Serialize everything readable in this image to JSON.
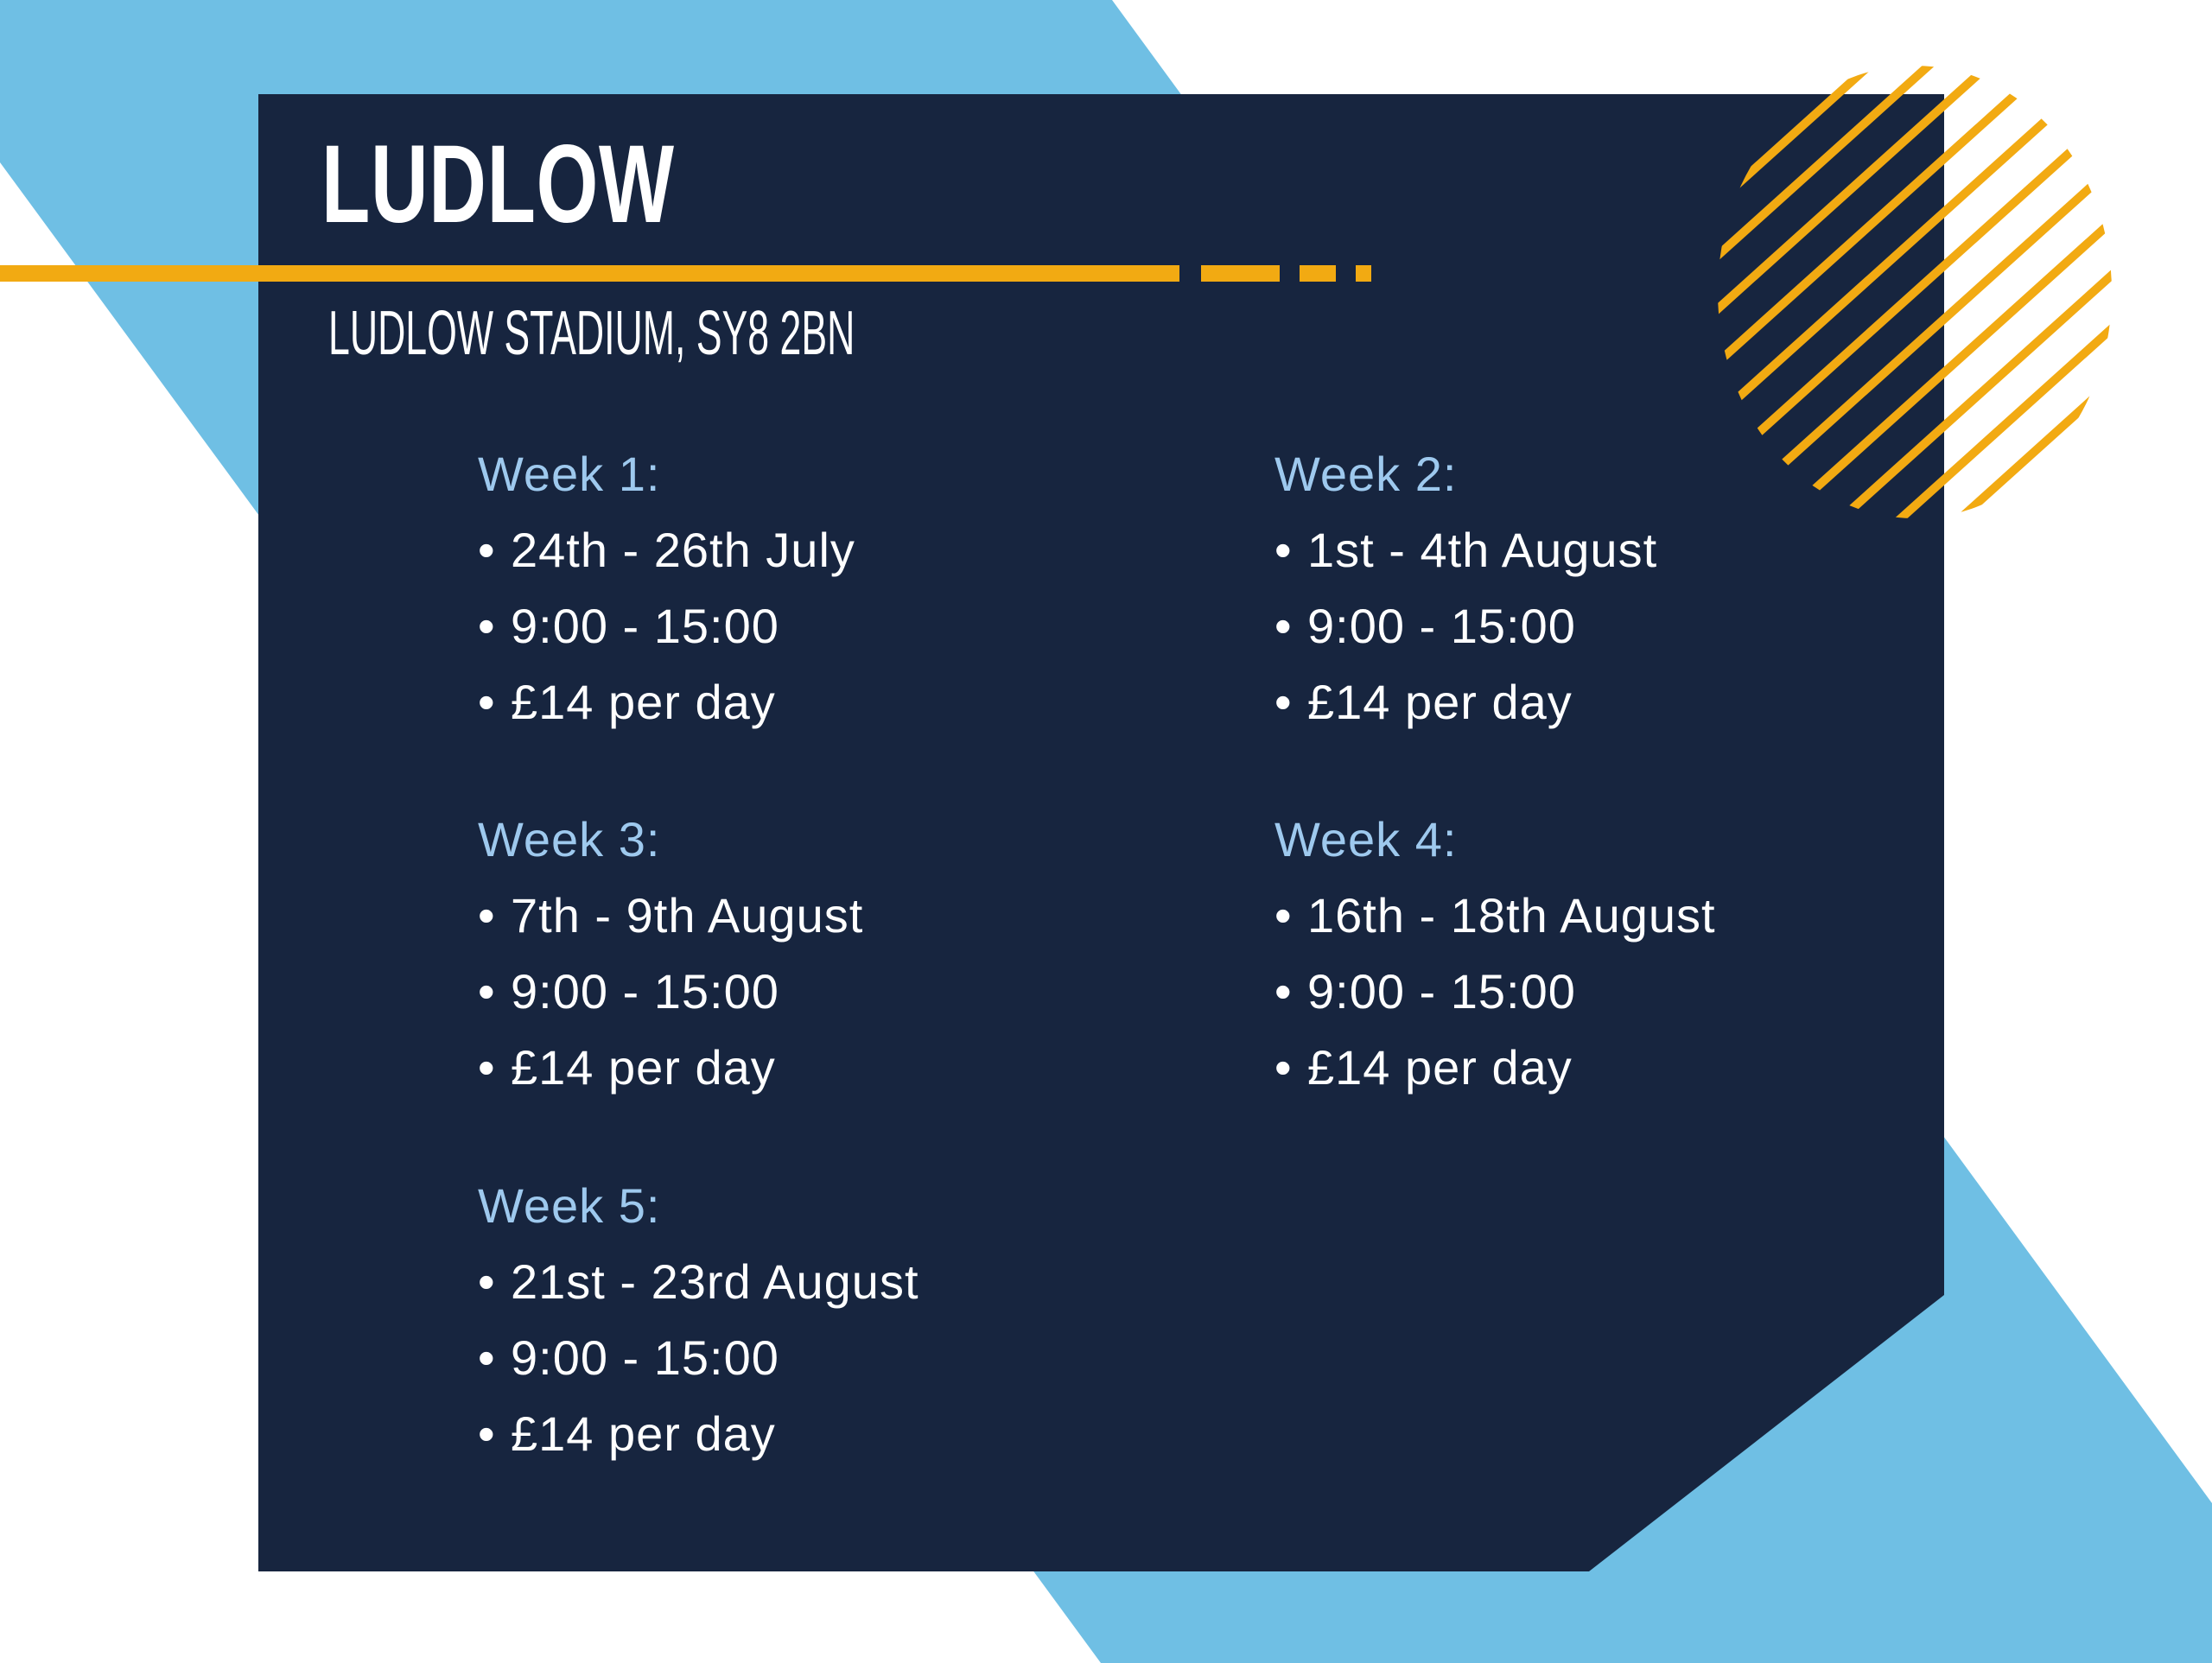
{
  "colors": {
    "panel": "#17253f",
    "sky_blue": "#6fbfe4",
    "accent_orange": "#f2aa12",
    "heading_blue": "#9ec9ee",
    "text": "#ffffff"
  },
  "header": {
    "title": "LUDLOW",
    "subtitle": "LUDLOW STADIUM, SY8 2BN"
  },
  "decorations": [
    "diagonal-blue-band",
    "orange-dashed-rule",
    "striped-circle"
  ],
  "weeks": [
    {
      "heading": "Week 1:",
      "items": [
        "24th - 26th July",
        "9:00 - 15:00",
        "£14 per day"
      ]
    },
    {
      "heading": "Week 2:",
      "items": [
        "1st - 4th August",
        "9:00 - 15:00",
        "£14 per day"
      ]
    },
    {
      "heading": "Week 3:",
      "items": [
        "7th - 9th August",
        "9:00 - 15:00",
        "£14 per day"
      ]
    },
    {
      "heading": "Week 4:",
      "items": [
        "16th - 18th August",
        "9:00 - 15:00",
        "£14 per day"
      ]
    },
    {
      "heading": "Week 5:",
      "items": [
        "21st - 23rd August",
        "9:00 - 15:00",
        "£14 per day"
      ]
    }
  ],
  "bullet": "•"
}
